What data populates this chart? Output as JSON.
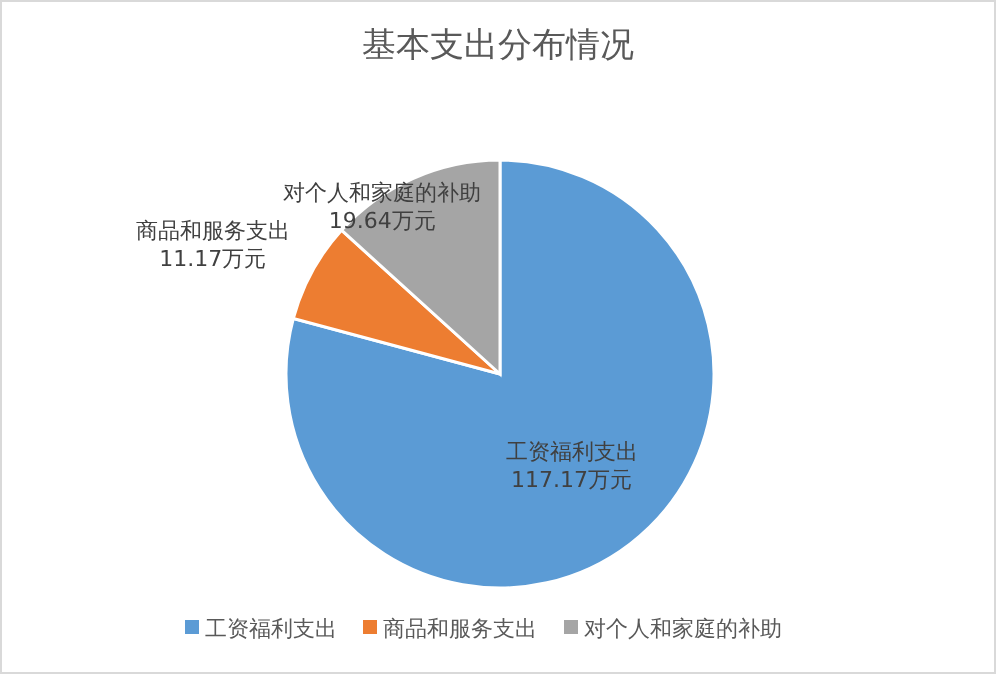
{
  "chart_data": {
    "type": "pie",
    "title": "基本支出分布情况",
    "categories": [
      "工资福利支出",
      "商品和服务支出",
      "对个人和家庭的补助"
    ],
    "values": [
      117.17,
      11.17,
      19.64
    ],
    "value_labels": [
      "117.17万元",
      "11.17万元",
      "19.64万元"
    ],
    "colors": [
      "#5b9bd5",
      "#ed7d31",
      "#a5a5a5"
    ],
    "legend": "bottom"
  }
}
